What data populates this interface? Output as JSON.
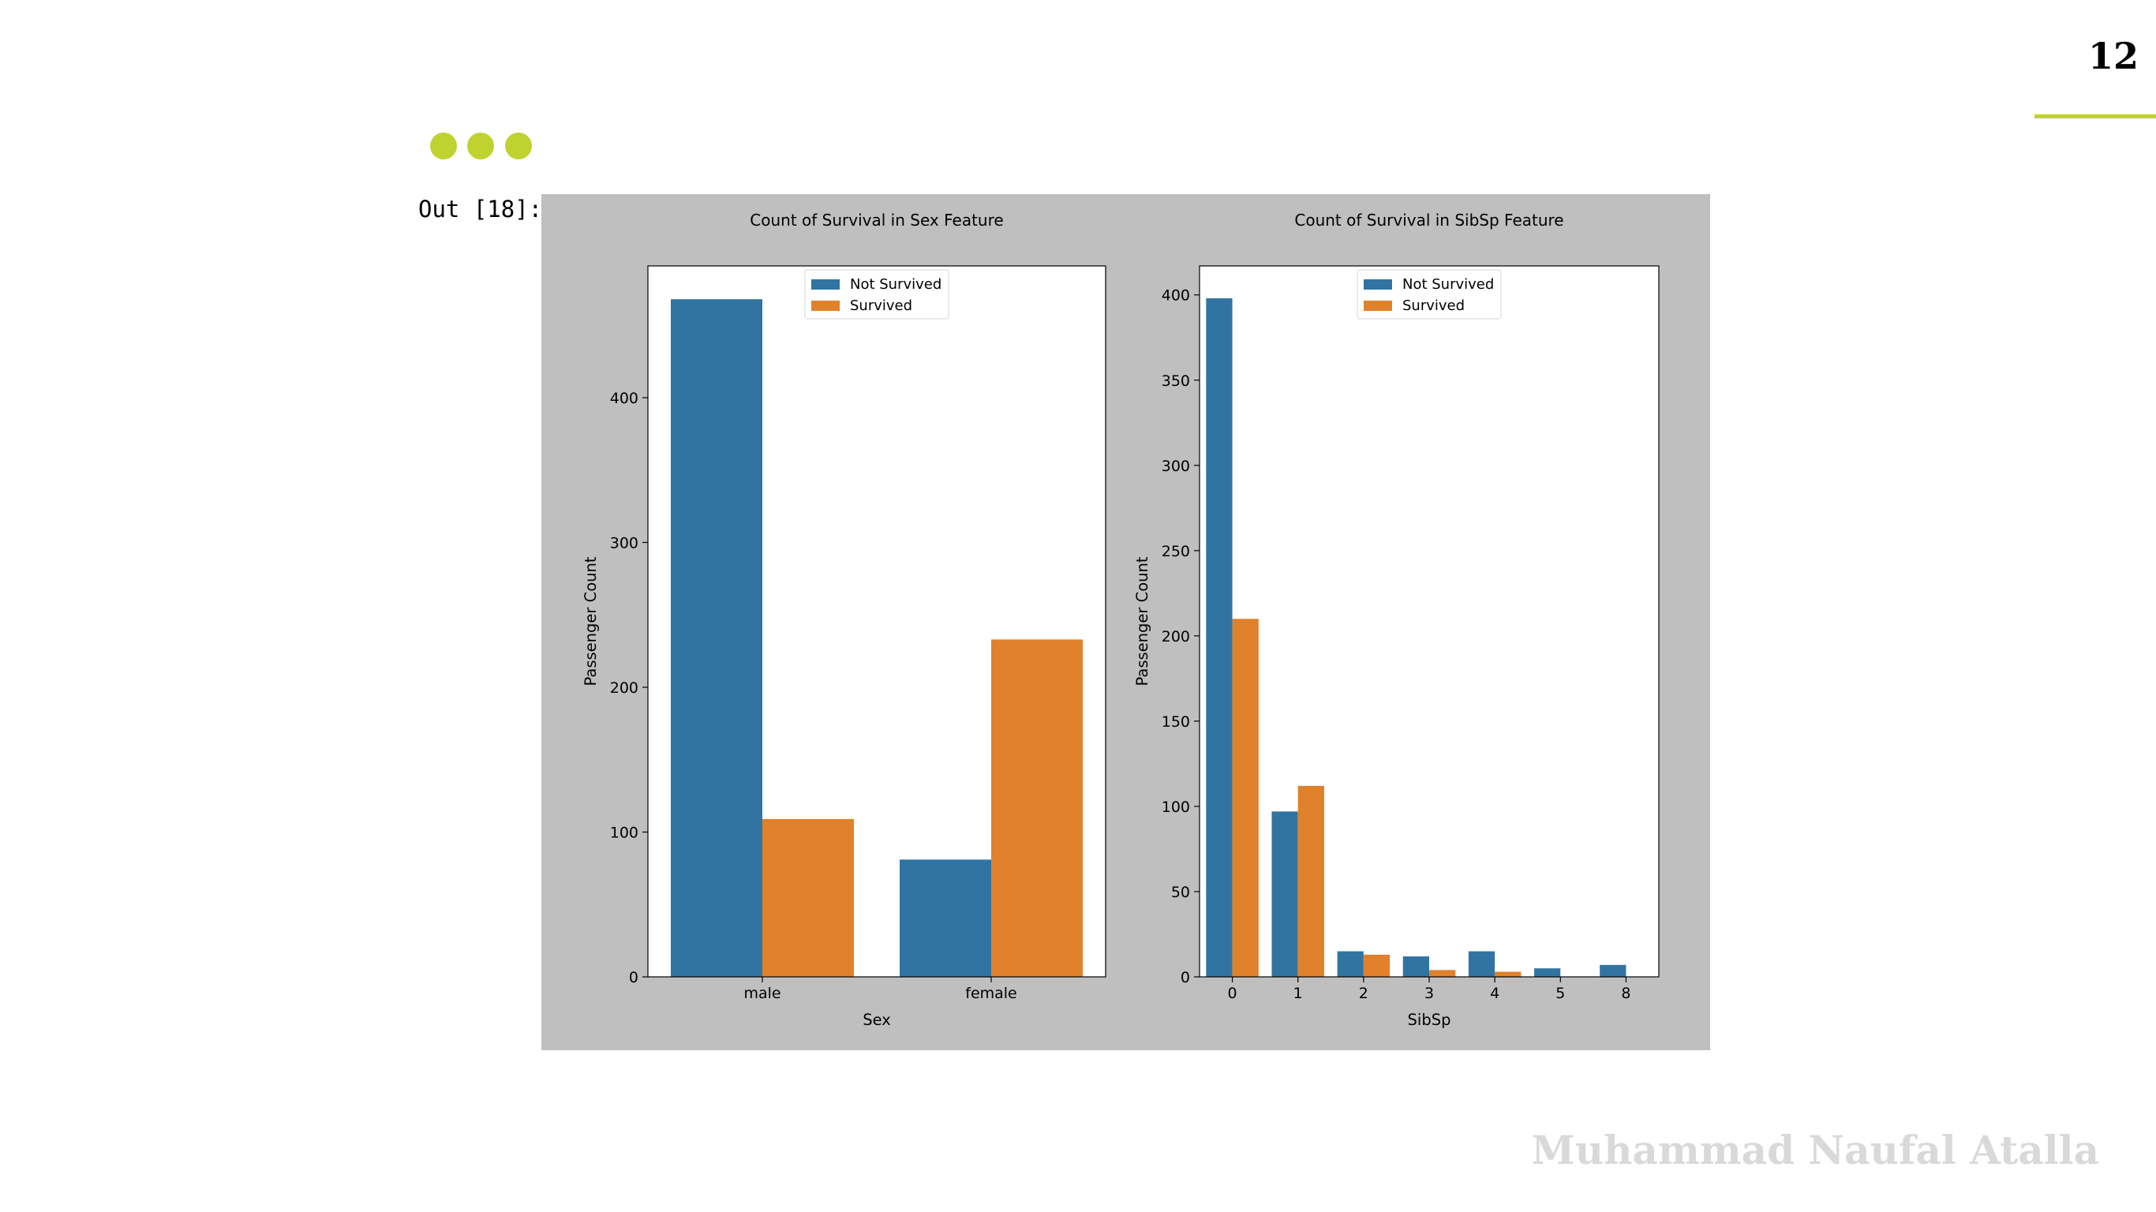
{
  "slide": {
    "page_number": "12",
    "output_prompt": "Out [18]:",
    "author": "Muhammad Naufal Atalla",
    "accent_color": "#c0d230",
    "figure_background": "#bfbfbf"
  },
  "chart_data": [
    {
      "type": "bar",
      "title": "Count of Survival in Sex Feature",
      "xlabel": "Sex",
      "ylabel": "Passenger Count",
      "categories": [
        "male",
        "female"
      ],
      "series": [
        {
          "name": "Not Survived",
          "color": "#3274a1",
          "values": [
            468,
            81
          ]
        },
        {
          "name": "Survived",
          "color": "#e1812c",
          "values": [
            109,
            233
          ]
        }
      ],
      "ylim": [
        0,
        491
      ],
      "yticks": [
        0,
        100,
        200,
        300,
        400
      ],
      "legend": "upper center",
      "grid": false
    },
    {
      "type": "bar",
      "title": "Count of Survival in SibSp Feature",
      "xlabel": "SibSp",
      "ylabel": "Passenger Count",
      "categories": [
        "0",
        "1",
        "2",
        "3",
        "4",
        "5",
        "8"
      ],
      "series": [
        {
          "name": "Not Survived",
          "color": "#3274a1",
          "values": [
            398,
            97,
            15,
            12,
            15,
            5,
            7
          ]
        },
        {
          "name": "Survived",
          "color": "#e1812c",
          "values": [
            210,
            112,
            13,
            4,
            3,
            0,
            0
          ]
        }
      ],
      "ylim": [
        0,
        417
      ],
      "yticks": [
        0,
        50,
        100,
        150,
        200,
        250,
        300,
        350,
        400
      ],
      "legend": "upper center",
      "grid": false
    }
  ]
}
